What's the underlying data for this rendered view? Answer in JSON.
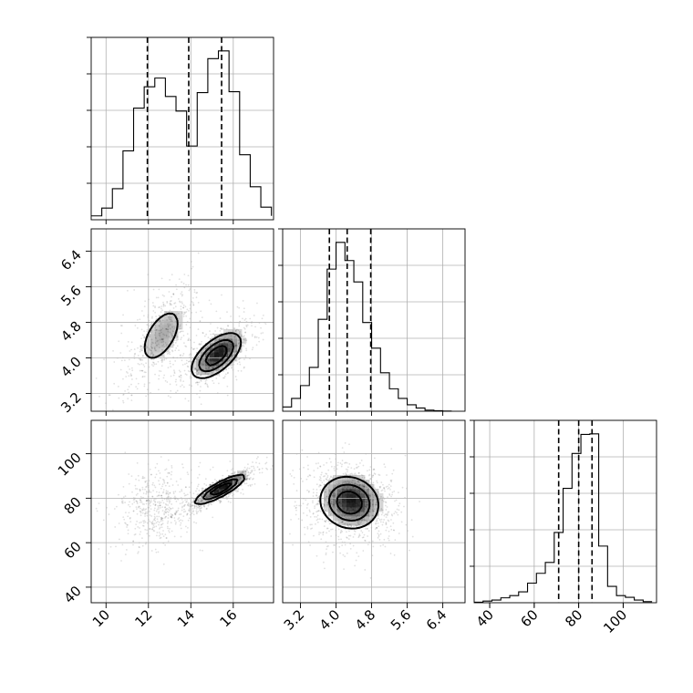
{
  "chart_data": {
    "type": "corner",
    "grid": true,
    "parameters": [
      {
        "range": [
          9.3,
          17.9
        ],
        "ticks": [
          10,
          12,
          14,
          16
        ],
        "tick_labels": [
          "10",
          "12",
          "14",
          "16"
        ],
        "quantiles": [
          11.95,
          13.9,
          15.45
        ]
      },
      {
        "range": [
          2.8,
          6.9
        ],
        "ticks": [
          3.2,
          4.0,
          4.8,
          5.6,
          6.4
        ],
        "tick_labels": [
          "3.2",
          "4.0",
          "4.8",
          "5.6",
          "6.4"
        ],
        "quantiles": [
          3.85,
          4.25,
          4.78
        ]
      },
      {
        "range": [
          33,
          115
        ],
        "ticks": [
          40,
          60,
          80,
          100
        ],
        "tick_labels": [
          "40",
          "60",
          "80",
          "100"
        ],
        "quantiles": [
          71,
          80,
          86
        ]
      }
    ],
    "histograms": [
      {
        "param": 0,
        "bin_edges": [
          9.3,
          9.8,
          10.3,
          10.8,
          11.3,
          11.8,
          12.3,
          12.8,
          13.3,
          13.8,
          14.3,
          14.8,
          15.3,
          15.8,
          16.3,
          16.8,
          17.3,
          17.8
        ],
        "counts": [
          0.4,
          1.2,
          3.2,
          7.1,
          11.5,
          13.7,
          14.6,
          12.7,
          11.2,
          7.6,
          13.1,
          16.6,
          17.4,
          13.2,
          6.7,
          3.4,
          1.3,
          0.4
        ]
      },
      {
        "param": 1,
        "bin_edges": [
          2.8,
          3.0,
          3.2,
          3.4,
          3.6,
          3.8,
          4.0,
          4.2,
          4.4,
          4.6,
          4.8,
          5.0,
          5.2,
          5.4,
          5.6,
          5.8,
          6.0,
          6.2,
          6.4,
          6.6
        ],
        "counts": [
          0.4,
          1.2,
          2.4,
          4.1,
          8.6,
          13.3,
          15.8,
          14.1,
          12.1,
          8.3,
          5.9,
          3.6,
          2.1,
          1.2,
          0.6,
          0.3,
          0.1,
          0.05,
          0.02
        ]
      },
      {
        "param": 2,
        "bin_edges": [
          33,
          37,
          41,
          45,
          49,
          53,
          57,
          61,
          65,
          69,
          73,
          77,
          81,
          85,
          89,
          93,
          97,
          101,
          105,
          109,
          113
        ],
        "counts": [
          0.1,
          0.3,
          0.5,
          0.9,
          1.3,
          2.0,
          3.6,
          5.4,
          7.4,
          12.9,
          21.0,
          27.4,
          30.9,
          31.0,
          10.4,
          3.0,
          1.3,
          1.0,
          0.5,
          0.2
        ]
      }
    ],
    "pairs": [
      {
        "x": 0,
        "y": 1,
        "clusters": [
          {
            "center": [
              12.6,
              4.5
            ],
            "spread": [
              0.85,
              0.55
            ],
            "corr": 0.55,
            "weight": 0.48
          },
          {
            "center": [
              15.2,
              4.05
            ],
            "spread": [
              0.8,
              0.35
            ],
            "corr": 0.6,
            "weight": 0.52
          }
        ]
      },
      {
        "x": 0,
        "y": 2,
        "clusters": [
          {
            "center": [
              12.4,
              76
            ],
            "spread": [
              0.9,
              8
            ],
            "corr": 0.3,
            "weight": 0.48
          },
          {
            "center": [
              15.4,
              84
            ],
            "spread": [
              0.8,
              4.5
            ],
            "corr": 0.85,
            "weight": 0.52
          }
        ]
      },
      {
        "x": 1,
        "y": 2,
        "clusters": [
          {
            "center": [
              4.3,
              78
            ],
            "spread": [
              0.45,
              8
            ],
            "corr": -0.1,
            "weight": 1.0
          }
        ]
      }
    ]
  }
}
